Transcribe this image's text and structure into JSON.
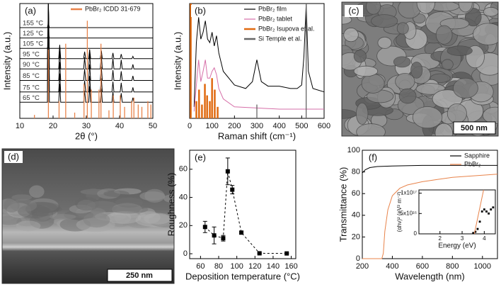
{
  "chart_data": [
    {
      "type": "line",
      "panel_label": "(a)",
      "x_label": "2θ (°)",
      "y_label": "Intensity (a.u.)",
      "xlim": [
        10,
        50
      ],
      "xticks": [
        10,
        20,
        30,
        40,
        50
      ],
      "ylim": [
        0,
        10
      ],
      "inline_labels": true,
      "legend": "upper right",
      "x": [
        10,
        18.3,
        18.6,
        18.9,
        21.7,
        22,
        22.3,
        29.2,
        29.5,
        29.8,
        30.7,
        31,
        31.3,
        34.2,
        34.5,
        34.8,
        37.7,
        38,
        38.3,
        40.2,
        40.5,
        40.8,
        43.7,
        44,
        44.3,
        50
      ],
      "series": [
        {
          "name": "155 °C",
          "color": "#000000",
          "values": [
            7.9,
            7.9,
            8.3,
            7.9,
            7.9,
            7.9,
            7.9,
            7.9,
            7.9,
            7.9,
            7.9,
            7.9,
            7.9,
            7.9,
            7.9,
            7.9,
            7.9,
            7.9,
            7.9,
            7.9,
            7.9,
            7.9,
            7.9,
            7.9,
            7.9,
            7.9
          ]
        },
        {
          "name": "125 °C",
          "color": "#000000",
          "values": [
            7.0,
            7.0,
            7.4,
            7.0,
            7.0,
            7.0,
            7.0,
            7.0,
            7.0,
            7.0,
            7.0,
            7.0,
            7.0,
            7.0,
            7.0,
            7.0,
            7.0,
            7.0,
            7.0,
            7.0,
            7.0,
            7.0,
            7.0,
            7.0,
            7.0,
            7.0
          ]
        },
        {
          "name": "105 °C",
          "color": "#000000",
          "values": [
            6.1,
            6.1,
            6.5,
            6.1,
            6.1,
            6.1,
            6.1,
            6.1,
            6.1,
            6.1,
            6.1,
            6.1,
            6.1,
            6.1,
            6.1,
            6.1,
            6.1,
            6.1,
            6.1,
            6.1,
            6.1,
            6.1,
            6.1,
            6.1,
            6.1,
            6.1
          ]
        },
        {
          "name": "95 °C",
          "color": "#000000",
          "values": [
            5.2,
            5.2,
            10,
            5.2,
            5.2,
            6.4,
            5.2,
            5.2,
            5.8,
            5.2,
            5.2,
            6.0,
            5.2,
            5.2,
            5.9,
            5.2,
            5.2,
            5.7,
            5.2,
            5.2,
            5.6,
            5.2,
            5.2,
            5.4,
            5.2,
            5.2
          ]
        },
        {
          "name": "90 °C",
          "color": "#000000",
          "values": [
            4.3,
            4.3,
            10,
            4.3,
            4.3,
            5.9,
            4.3,
            4.3,
            5.3,
            4.3,
            4.3,
            5.7,
            4.3,
            4.3,
            5.5,
            4.3,
            4.3,
            5.2,
            4.3,
            4.3,
            5.1,
            4.3,
            4.3,
            4.7,
            4.3,
            4.3
          ]
        },
        {
          "name": "85 °C",
          "color": "#000000",
          "values": [
            3.3,
            3.3,
            10,
            3.3,
            3.3,
            4.9,
            3.3,
            3.3,
            4.3,
            3.3,
            3.3,
            4.7,
            3.3,
            3.3,
            4.5,
            3.3,
            3.3,
            4.2,
            3.3,
            3.3,
            4.1,
            3.3,
            3.3,
            3.7,
            3.3,
            3.3
          ]
        },
        {
          "name": "75 °C",
          "color": "#000000",
          "values": [
            2.3,
            2.3,
            10,
            2.3,
            2.3,
            3.9,
            2.3,
            2.3,
            3.3,
            2.3,
            2.3,
            3.7,
            2.3,
            2.3,
            3.5,
            2.3,
            2.3,
            3.2,
            2.3,
            2.3,
            3.1,
            2.3,
            2.3,
            2.7,
            2.3,
            2.3
          ]
        },
        {
          "name": "65 °C",
          "color": "#000000",
          "values": [
            1.4,
            1.4,
            10,
            1.4,
            1.4,
            3.0,
            1.4,
            1.4,
            2.4,
            1.4,
            1.4,
            2.8,
            1.4,
            1.4,
            2.6,
            1.4,
            1.4,
            2.3,
            1.4,
            1.4,
            2.2,
            1.4,
            1.4,
            1.8,
            1.4,
            1.4
          ]
        },
        {
          "name": "PbBr₂ ICDD 31-679",
          "type": "stick",
          "color": "#e8834a",
          "x": [
            14.4,
            18.6,
            21.8,
            23.8,
            26.5,
            29.3,
            30.3,
            31.5,
            33.8,
            34.4,
            36.8,
            38.1,
            40.2,
            41.5,
            43.6,
            44.3,
            45.6,
            46.7,
            48.5,
            49.4
          ],
          "values": [
            0.3,
            6.0,
            1.5,
            6.5,
            0.5,
            3.0,
            8.5,
            2.5,
            2.5,
            6.5,
            0.7,
            2.0,
            2.0,
            1.0,
            1.5,
            1.8,
            1.2,
            1.0,
            1.5,
            1.2
          ]
        }
      ]
    },
    {
      "type": "line",
      "panel_label": "(b)",
      "x_label": "Raman shift (cm⁻¹)",
      "y_label": "Intensity (a.u.)",
      "xlim": [
        0,
        600
      ],
      "xticks": [
        0,
        100,
        200,
        300,
        400,
        500,
        600
      ],
      "ylim": [
        0,
        10
      ],
      "legend": "upper right",
      "series": [
        {
          "name": "PbBr₂ film",
          "color": "#000000",
          "x": [
            20,
            30,
            40,
            50,
            60,
            70,
            80,
            90,
            100,
            110,
            120,
            130,
            150,
            200,
            250,
            280,
            300,
            320,
            350,
            400,
            450,
            480,
            500,
            510,
            520,
            530,
            550,
            600
          ],
          "values": [
            1.0,
            6.6,
            8.8,
            6.9,
            7.5,
            8.5,
            6.9,
            6.6,
            7.5,
            6.3,
            7.2,
            5.7,
            4.1,
            2.9,
            2.6,
            3.2,
            5.1,
            3.2,
            2.8,
            2.8,
            2.6,
            2.6,
            2.9,
            5.4,
            10,
            4.1,
            2.6,
            2.3
          ]
        },
        {
          "name": "PbBr₂ tablet",
          "color": "#d66fa8",
          "x": [
            20,
            30,
            40,
            50,
            60,
            70,
            80,
            90,
            100,
            110,
            120,
            130,
            150,
            200,
            300,
            400,
            500,
            600
          ],
          "values": [
            0.6,
            2.9,
            5.1,
            3.2,
            4.1,
            5.1,
            3.5,
            3.5,
            4.1,
            4.4,
            3.8,
            2.6,
            1.7,
            1.0,
            0.9,
            0.8,
            0.8,
            0.8
          ]
        },
        {
          "name": "PbBr₂ Isupova et al.",
          "type": "stick",
          "color": "#e06a10",
          "x": [
            5,
            30,
            42,
            55,
            68,
            78,
            90,
            100,
            112,
            125
          ],
          "values": [
            10,
            1.5,
            2.5,
            1.2,
            3.0,
            2.0,
            1.5,
            3.5,
            2.5,
            1.0
          ]
        },
        {
          "name": "Si Temple et al.",
          "type": "stick",
          "color": "#666666",
          "x": [
            300,
            520
          ],
          "values": [
            1.2,
            10
          ]
        }
      ]
    },
    {
      "type": "scatter",
      "panel_label": "(e)",
      "x_label": "Deposition temperature (°C)",
      "y_label": "Roughness (%)",
      "xlim": [
        48,
        165
      ],
      "xticks": [
        60,
        80,
        100,
        120,
        140,
        160
      ],
      "ylim": [
        -3.5,
        73.5
      ],
      "yticks": [
        0,
        20,
        40,
        60
      ],
      "series": [
        {
          "color": "#000000",
          "line": "dashed",
          "x": [
            65,
            75,
            85,
            90,
            95,
            105,
            125,
            155
          ],
          "values": [
            19,
            13,
            11,
            58.5,
            45.5,
            15,
            0.3,
            0.2
          ],
          "errors": [
            4,
            6,
            2,
            9.5,
            3,
            1,
            0.3,
            0.3
          ]
        }
      ]
    },
    {
      "type": "line",
      "panel_label": "(f)",
      "x_label": "Wavelength (nm)",
      "y_label": "Transmittance (%)",
      "xlim": [
        200,
        1100
      ],
      "xticks": [
        200,
        400,
        600,
        800,
        1000
      ],
      "ylim": [
        0,
        100
      ],
      "yticks": [
        0,
        20,
        40,
        60,
        80,
        100
      ],
      "legend": "upper right",
      "series": [
        {
          "name": "Sapphire",
          "color": "#000000",
          "x": [
            200,
            220,
            250,
            300,
            400,
            600,
            800,
            1000,
            1100
          ],
          "values": [
            79,
            82,
            84,
            85,
            85.5,
            86,
            86,
            86,
            86
          ]
        },
        {
          "name": "PbBr₂",
          "color": "#e8834a",
          "x": [
            200,
            330,
            340,
            350,
            370,
            400,
            450,
            500,
            600,
            700,
            800,
            1000,
            1100
          ],
          "values": [
            0,
            0,
            5,
            25,
            45,
            58,
            65,
            68,
            71,
            73,
            75,
            77,
            78
          ]
        }
      ]
    },
    {
      "type": "scatter",
      "x_label": "Energy (eV)",
      "y_label": "(αhν)² (eV² m⁻²)",
      "xlim": [
        1.05,
        4.5
      ],
      "xticks": [
        2,
        3,
        4
      ],
      "ylim": [
        0,
        1.08e+17
      ],
      "yticks": [
        0,
        {
          "value": 5e+16,
          "label": "5x10¹⁶"
        },
        {
          "value": 1e+17,
          "label": "1x10¹⁷"
        }
      ],
      "series": [
        {
          "color": "#000000",
          "x": [
            3.5,
            3.6,
            3.7,
            3.8,
            3.9,
            4.0,
            4.1,
            4.2,
            4.3,
            4.4
          ],
          "values": [
            2000000000000000.0,
            5000000000000000.0,
            1.2e+16,
            3e+16,
            5.5e+16,
            6e+16,
            5.5e+16,
            5e+16,
            6e+16,
            6.5e+16
          ]
        },
        {
          "type": "line",
          "color": "#e8834a",
          "x": [
            3.55,
            3.97
          ],
          "values": [
            0,
            1.08e+17
          ]
        }
      ]
    }
  ],
  "images": [
    {
      "panel_label": "(c)",
      "scale_bar": "500 nm"
    },
    {
      "panel_label": "(d)",
      "scale_bar": "250 nm"
    }
  ]
}
